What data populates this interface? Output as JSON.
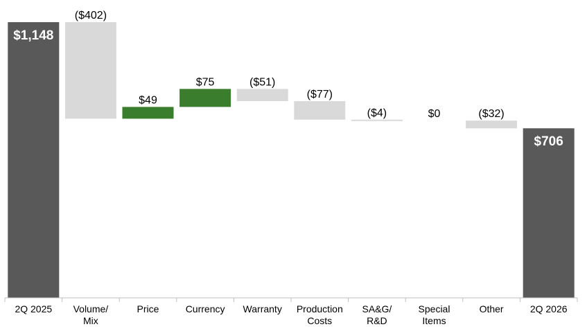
{
  "chart_data": {
    "type": "bar",
    "subtype": "waterfall",
    "title": "",
    "xlabel": "",
    "ylabel": "",
    "ylim": [
      0,
      1148
    ],
    "grid": false,
    "legend": "none",
    "categories": [
      [
        "2Q 2025"
      ],
      [
        "Volume/",
        "Mix"
      ],
      [
        "Price"
      ],
      [
        "Currency"
      ],
      [
        "Warranty"
      ],
      [
        "Production",
        "Costs"
      ],
      [
        "SA&G/",
        "R&D"
      ],
      [
        "Special",
        "Items"
      ],
      [
        "Other"
      ],
      [
        "2Q 2026"
      ]
    ],
    "steps": [
      {
        "kind": "total",
        "value": 1148,
        "label": "$1,148"
      },
      {
        "kind": "delta",
        "value": -402,
        "label": "($402)"
      },
      {
        "kind": "delta",
        "value": 49,
        "label": "$49"
      },
      {
        "kind": "delta",
        "value": 75,
        "label": "$75"
      },
      {
        "kind": "delta",
        "value": -51,
        "label": "($51)"
      },
      {
        "kind": "delta",
        "value": -77,
        "label": "($77)"
      },
      {
        "kind": "delta",
        "value": -4,
        "label": "($4)"
      },
      {
        "kind": "delta",
        "value": 0,
        "label": "$0"
      },
      {
        "kind": "delta",
        "value": -32,
        "label": "($32)"
      },
      {
        "kind": "total",
        "value": 706,
        "label": "$706"
      }
    ],
    "colors": {
      "total": "#595959",
      "increase": "#3a7d2c",
      "decrease": "#d9d9d9",
      "axis": "#bfbfbf"
    }
  }
}
